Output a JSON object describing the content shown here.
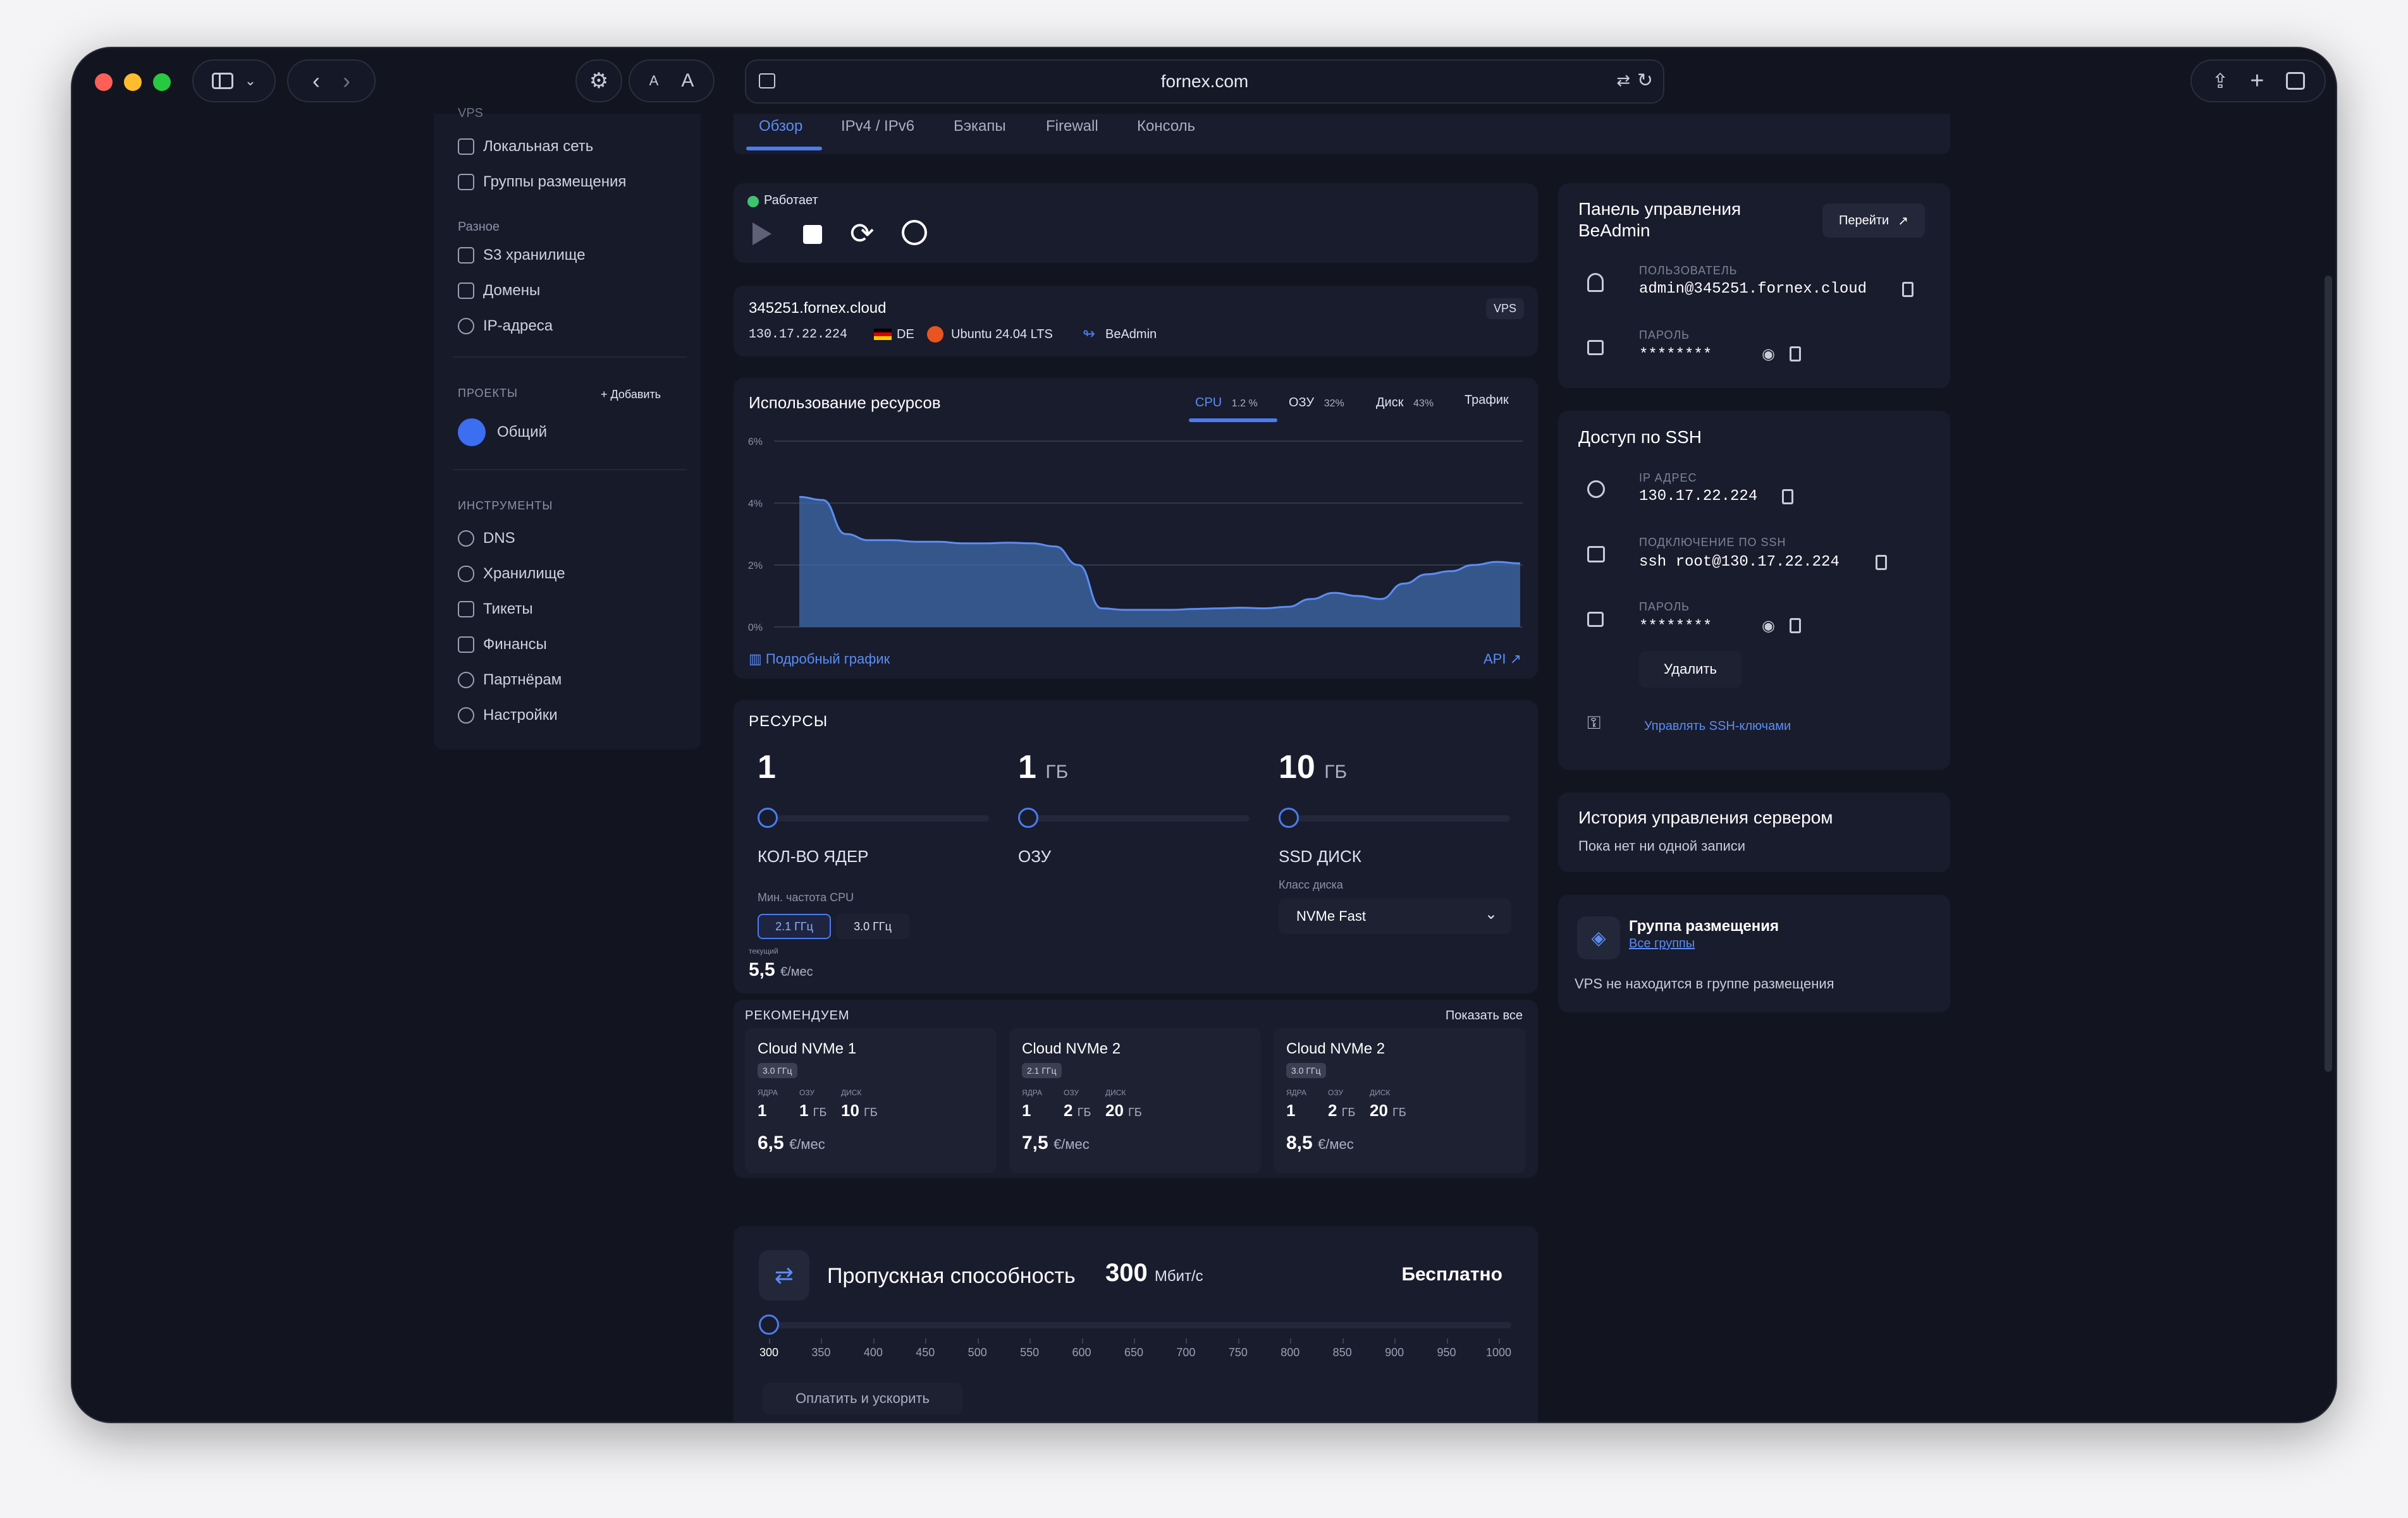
{
  "browser": {
    "url": "fornex.com"
  },
  "sidebar": {
    "truncated_top": "VPS",
    "items_top": [
      "Локальная сеть",
      "Группы размещения"
    ],
    "misc_title": "Разное",
    "misc_items": [
      "S3 хранилище",
      "Домены",
      "IP-адреса"
    ],
    "projects_title": "ПРОЕКТЫ",
    "projects_add": "+ Добавить",
    "project_name": "Общий",
    "tools_title": "ИНСТРУМЕНТЫ",
    "tools_items": [
      "DNS",
      "Хранилище",
      "Тикеты",
      "Финансы",
      "Партнёрам",
      "Настройки"
    ]
  },
  "tabs": [
    "Обзор",
    "IPv4 / IPv6",
    "Бэкапы",
    "Firewall",
    "Консоль"
  ],
  "status": {
    "text": "Работает",
    "color": "#3ec46d"
  },
  "server": {
    "hostname": "345251.fornex.cloud",
    "ip": "130.17.22.224",
    "country": "DE",
    "os": "Ubuntu 24.04 LTS",
    "panel": "BeAdmin",
    "badge": "VPS"
  },
  "usage": {
    "title": "Использование ресурсов",
    "tabs": [
      {
        "label": "CPU",
        "value": "1.2 %"
      },
      {
        "label": "ОЗУ",
        "value": "32%"
      },
      {
        "label": "Диск",
        "value": "43%"
      },
      {
        "label": "Трафик",
        "value": ""
      }
    ],
    "details_link": "Подробный график",
    "api_link": "API"
  },
  "chart_data": {
    "type": "area",
    "title": "",
    "y_ticks": [
      "6%",
      "4%",
      "2%",
      "0%"
    ],
    "ylim": [
      0,
      6
    ],
    "values": [
      4.2,
      4.1,
      3.0,
      2.8,
      2.8,
      2.75,
      2.75,
      2.7,
      2.7,
      2.72,
      2.7,
      2.6,
      2.0,
      0.6,
      0.55,
      0.55,
      0.55,
      0.58,
      0.6,
      0.62,
      0.6,
      0.65,
      0.9,
      1.1,
      1.0,
      0.9,
      1.4,
      1.7,
      1.8,
      2.0,
      2.1,
      2.05
    ]
  },
  "resources": {
    "title": "РЕСУРСЫ",
    "cores": {
      "value": "1",
      "unit": "",
      "label": "КОЛ-ВО ЯДЕР"
    },
    "ram": {
      "value": "1",
      "unit": "ГБ",
      "label": "ОЗУ"
    },
    "disk": {
      "value": "10",
      "unit": "ГБ",
      "label": "SSD ДИСК"
    },
    "cpu_freq_label": "Мин. частота CPU",
    "freq_options": [
      "2.1 ГГц",
      "3.0 ГГц"
    ],
    "disk_class_label": "Класс диска",
    "disk_class": "NVMe Fast",
    "current_label": "текущий",
    "price": "5,5",
    "price_unit": "€/мес"
  },
  "recommend": {
    "title": "РЕКОМЕНДУЕМ",
    "show_all": "Показать все",
    "labels": {
      "cores": "ЯДРА",
      "ram": "ОЗУ",
      "disk": "ДИСК"
    },
    "items": [
      {
        "name": "Cloud NVMe 1",
        "freq": "3.0 ГГц",
        "cores": "1",
        "ram": "1",
        "disk": "10",
        "unit": "ГБ",
        "price": "6,5",
        "price_unit": "€/мес"
      },
      {
        "name": "Cloud NVMe 2",
        "freq": "2.1 ГГц",
        "cores": "1",
        "ram": "2",
        "disk": "20",
        "unit": "ГБ",
        "price": "7,5",
        "price_unit": "€/мес"
      },
      {
        "name": "Cloud NVMe 2",
        "freq": "3.0 ГГц",
        "cores": "1",
        "ram": "2",
        "disk": "20",
        "unit": "ГБ",
        "price": "8,5",
        "price_unit": "€/мес"
      }
    ]
  },
  "bandwidth": {
    "label": "Пропускная способность",
    "value": "300",
    "unit": "Мбит/с",
    "price": "Бесплатно",
    "ticks": [
      "300",
      "350",
      "400",
      "450",
      "500",
      "550",
      "600",
      "650",
      "700",
      "750",
      "800",
      "850",
      "900",
      "950",
      "1000"
    ],
    "button": "Оплатить и ускорить"
  },
  "beadmin": {
    "title": "Панель управления BeAdmin",
    "go_button": "Перейти",
    "user_label": "ПОЛЬЗОВАТЕЛЬ",
    "user": "admin@345251.fornex.cloud",
    "pass_label": "ПАРОЛЬ",
    "pass": "********"
  },
  "ssh": {
    "title": "Доступ по SSH",
    "ip_label": "IP АДРЕС",
    "ip": "130.17.22.224",
    "conn_label": "ПОДКЛЮЧЕНИЕ ПО SSH",
    "conn": "ssh root@130.17.22.224",
    "pass_label": "ПАРОЛЬ",
    "pass": "********",
    "delete": "Удалить",
    "manage": "Управлять SSH-ключами"
  },
  "history": {
    "title": "История управления сервером",
    "text": "Пока нет ни одной записи"
  },
  "group": {
    "title": "Группа размещения",
    "link": "Все группы",
    "text": "VPS не находится в группе размещения"
  }
}
